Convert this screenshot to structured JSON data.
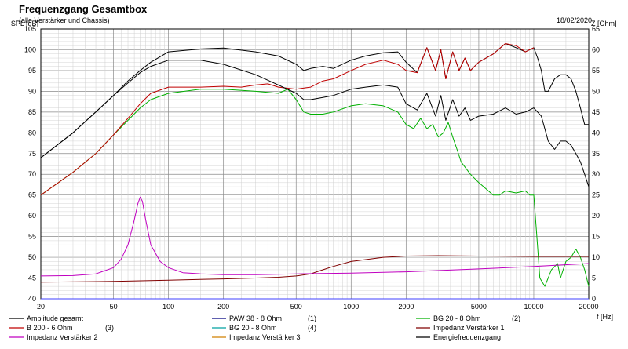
{
  "header": {
    "title": "Frequenzgang Gesamtbox",
    "subtitle": "(alle Verstärker und Chassis)",
    "date": "18/02/2020"
  },
  "chart_data": {
    "type": "line",
    "title": "Frequenzgang Gesamtbox",
    "subtitle": "(alle Verstärker und Chassis)",
    "xlabel": "f [Hz]",
    "ylabel": "SPL [dB]",
    "y2label": "Z [Ohm]",
    "xscale": "log",
    "xlim": [
      20,
      20000
    ],
    "ylim": [
      40,
      105
    ],
    "y2lim": [
      0,
      65
    ],
    "grid": true,
    "legend_position": "bottom",
    "x_ticks": [
      20,
      50,
      100,
      200,
      500,
      1000,
      2000,
      5000,
      10000,
      20000
    ],
    "x_tick_labels": [
      "20",
      "50",
      "100",
      "200",
      "500",
      "1000",
      "2000",
      "5000",
      "10000",
      "20000"
    ],
    "y_ticks": [
      40,
      45,
      50,
      55,
      60,
      65,
      70,
      75,
      80,
      85,
      90,
      95,
      100,
      105
    ],
    "y2_ticks": [
      0,
      5,
      10,
      15,
      20,
      25,
      30,
      35,
      40,
      45,
      50,
      55,
      60,
      65
    ],
    "series": [
      {
        "name": "Amplitude gesamt",
        "axis": "left",
        "color": "#000000",
        "x": [
          20,
          30,
          40,
          50,
          60,
          70,
          80,
          100,
          150,
          200,
          300,
          400,
          500,
          550,
          600,
          700,
          800,
          1000,
          1200,
          1500,
          1800,
          2000,
          2300,
          2600,
          2900,
          3100,
          3300,
          3600,
          3900,
          4200,
          4500,
          5000,
          6000,
          7000,
          8000,
          9000,
          10000,
          10500,
          11000,
          11500,
          12000,
          13000,
          14000,
          15000,
          16000,
          17000,
          18000,
          19000,
          20000
        ],
        "y": [
          74,
          80,
          85,
          89,
          92.5,
          95,
          97,
          99.5,
          100.2,
          100.4,
          99.5,
          98.5,
          96.5,
          95,
          95.5,
          96,
          95.5,
          97.5,
          98.5,
          99.3,
          99.5,
          97,
          94.5,
          100.5,
          95,
          100,
          93,
          99.5,
          95,
          98,
          95,
          97,
          99,
          101.5,
          100.5,
          99.5,
          100.5,
          98,
          95,
          90,
          90,
          93,
          94,
          94,
          93,
          90,
          86,
          82,
          82
        ]
      },
      {
        "name": "PAW 38 - 8 Ohm",
        "label_suffix": "(1)",
        "axis": "left",
        "color": "#000080",
        "x": [],
        "y": []
      },
      {
        "name": "BG 20 - 8 Ohm",
        "label_suffix": "(2)",
        "axis": "left",
        "color": "#00b000",
        "x": [
          20,
          30,
          40,
          50,
          60,
          70,
          80,
          100,
          150,
          200,
          300,
          400,
          450,
          500,
          550,
          600,
          700,
          800,
          1000,
          1200,
          1500,
          1800,
          2000,
          2200,
          2400,
          2600,
          2800,
          3000,
          3200,
          3400,
          3600,
          3800,
          4000,
          4500,
          5000,
          6000,
          6500,
          7000,
          8000,
          9000,
          9500,
          10000,
          10400,
          10800,
          11500,
          12500,
          13500,
          14000,
          15000,
          16000,
          17000,
          18000,
          19000,
          20000
        ],
        "y": [
          65,
          70.5,
          75,
          79.5,
          83,
          86,
          88,
          89.5,
          90.5,
          90.5,
          90,
          89.5,
          90.5,
          88,
          85,
          84.5,
          84.5,
          85,
          86.5,
          87,
          86.5,
          85,
          82,
          81,
          83.5,
          81,
          82,
          79,
          80,
          82.5,
          79,
          76,
          73,
          70,
          68,
          65,
          65,
          66,
          65.5,
          66,
          65,
          65,
          55,
          45,
          43,
          47,
          48.5,
          45,
          49,
          50,
          52,
          50,
          47,
          43
        ]
      },
      {
        "name": "B 200 - 6 Ohm",
        "label_suffix": "(3)",
        "axis": "left",
        "color": "#c00000",
        "x": [
          20,
          30,
          40,
          50,
          60,
          70,
          80,
          100,
          150,
          200,
          250,
          300,
          350,
          400,
          500,
          600,
          700,
          800,
          1000,
          1200,
          1500,
          1800,
          2000,
          2300,
          2600,
          2900,
          3100,
          3300,
          3600,
          3900,
          4200,
          4500,
          5000,
          6000,
          7000,
          8000,
          9000,
          10000
        ],
        "y": [
          65,
          70.5,
          75,
          79.5,
          83.5,
          87,
          89.5,
          91,
          91,
          91.2,
          91,
          91.5,
          91.8,
          91,
          90.5,
          91,
          92.5,
          93,
          95,
          96.5,
          97.5,
          96.5,
          95,
          94.5,
          100.5,
          95,
          100,
          93,
          99.5,
          95,
          98,
          95,
          97,
          99,
          101.5,
          101,
          99.5,
          100.5
        ]
      },
      {
        "name": "BG 20 - 8 Ohm",
        "label_suffix": "(4)",
        "axis": "left",
        "color": "#00a0a0",
        "x": [],
        "y": []
      },
      {
        "name": "Impedanz Verstärker 1",
        "axis": "right",
        "color": "#800000",
        "x": [
          20,
          50,
          100,
          200,
          300,
          400,
          500,
          600,
          700,
          800,
          1000,
          1500,
          2000,
          3000,
          5000,
          10000,
          20000
        ],
        "y": [
          4,
          4.2,
          4.5,
          4.8,
          5,
          5.2,
          5.5,
          6,
          7,
          7.8,
          9,
          10,
          10.3,
          10.4,
          10.3,
          10.2,
          10.2
        ]
      },
      {
        "name": "Impedanz Verstärker 2",
        "axis": "right",
        "color": "#c000c0",
        "x": [
          20,
          30,
          40,
          50,
          55,
          60,
          65,
          68,
          70,
          72,
          75,
          80,
          90,
          100,
          120,
          150,
          200,
          300,
          500,
          1000,
          2000,
          5000,
          10000,
          20000
        ],
        "y": [
          5.5,
          5.6,
          6,
          7.5,
          9.5,
          13,
          19,
          23,
          24.5,
          23.5,
          19,
          13,
          9,
          7.5,
          6.3,
          6,
          5.8,
          5.8,
          6,
          6.2,
          6.5,
          7.2,
          7.8,
          8.5
        ]
      },
      {
        "name": "Impedanz Verstärker 3",
        "axis": "right",
        "color": "#d08000",
        "x": [],
        "y": []
      },
      {
        "name": "Energiefrequenzgang",
        "axis": "left",
        "color": "#000000",
        "x": [
          20,
          30,
          40,
          50,
          60,
          70,
          80,
          100,
          150,
          200,
          300,
          400,
          500,
          550,
          600,
          700,
          800,
          1000,
          1200,
          1500,
          1800,
          2000,
          2300,
          2600,
          2900,
          3100,
          3300,
          3600,
          3900,
          4200,
          4500,
          5000,
          6000,
          7000,
          8000,
          9000,
          10000,
          11000,
          12000,
          13000,
          14000,
          15000,
          16000,
          17000,
          18000,
          19000,
          20000
        ],
        "y": [
          74,
          80,
          85,
          89,
          92,
          94.5,
          96,
          97.5,
          97.5,
          96.5,
          94,
          91.5,
          89.5,
          88,
          88,
          88.5,
          89,
          90.5,
          91,
          91.5,
          91,
          87,
          85.5,
          89.5,
          84,
          89,
          83,
          88,
          84,
          86,
          83,
          84,
          84.5,
          86,
          84.5,
          85,
          86,
          84,
          78,
          76,
          78,
          78,
          77,
          75,
          73,
          70,
          67
        ]
      },
      {
        "name": "",
        "axis": "right",
        "color": "#4040ff",
        "x": [
          20,
          20000
        ],
        "y": [
          0,
          0
        ]
      }
    ]
  }
}
